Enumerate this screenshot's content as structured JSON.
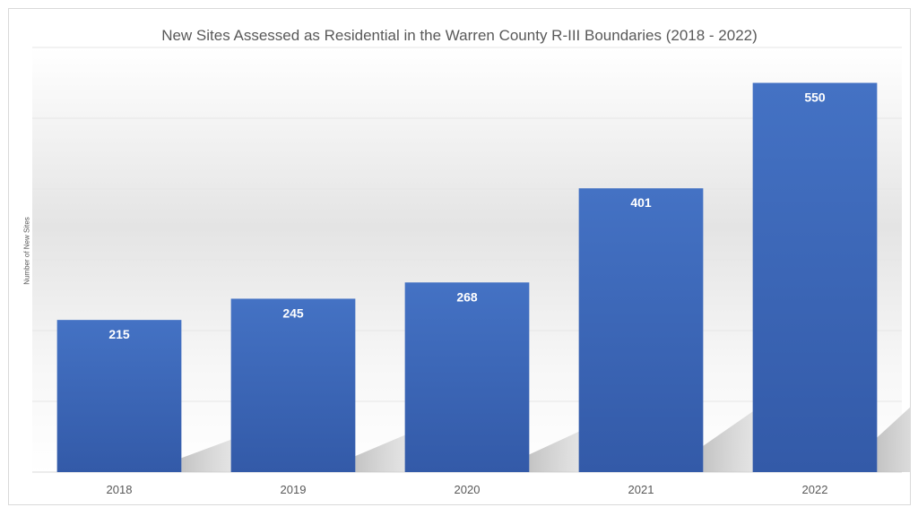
{
  "chart_data": {
    "type": "bar",
    "title": "New Sites Assessed as Residential in the Warren County R-III Boundaries (2018 - 2022)",
    "xlabel": "",
    "ylabel": "Number of New Sites",
    "categories": [
      "2018",
      "2019",
      "2020",
      "2021",
      "2022"
    ],
    "values": [
      215,
      245,
      268,
      401,
      550
    ],
    "ylim": [
      0,
      600
    ],
    "grid": true,
    "data_labels": true,
    "colors": {
      "bar_top": "#4472c4",
      "bar_bottom": "#335aa8",
      "label": "#ffffff",
      "text": "#595959",
      "grid": "#e6e6e6"
    }
  }
}
